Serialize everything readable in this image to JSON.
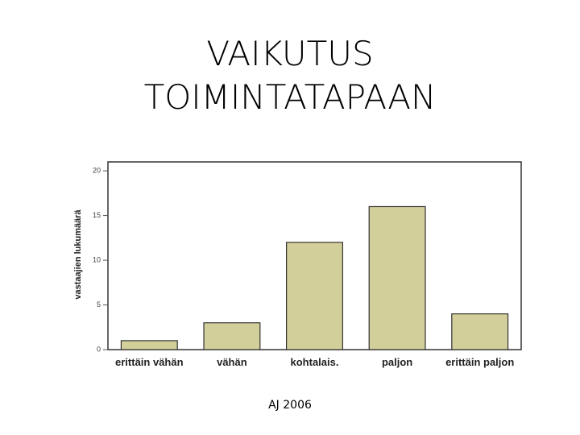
{
  "chart_data": {
    "type": "bar",
    "title": "VAIKUTUS TOIMINTATAPAAN",
    "y_label": "vastaajien lukumäärä",
    "categories": [
      "erittäin vähän",
      "vähän",
      "kohtalais.",
      "paljon",
      "erittäin paljon"
    ],
    "values": [
      1,
      3,
      12,
      16,
      4
    ],
    "color": "#d3cf9a",
    "ylim": [
      0,
      21
    ],
    "yticks": [
      0,
      5,
      10,
      15,
      20
    ],
    "grid": false
  },
  "footer": "AJ 2006"
}
